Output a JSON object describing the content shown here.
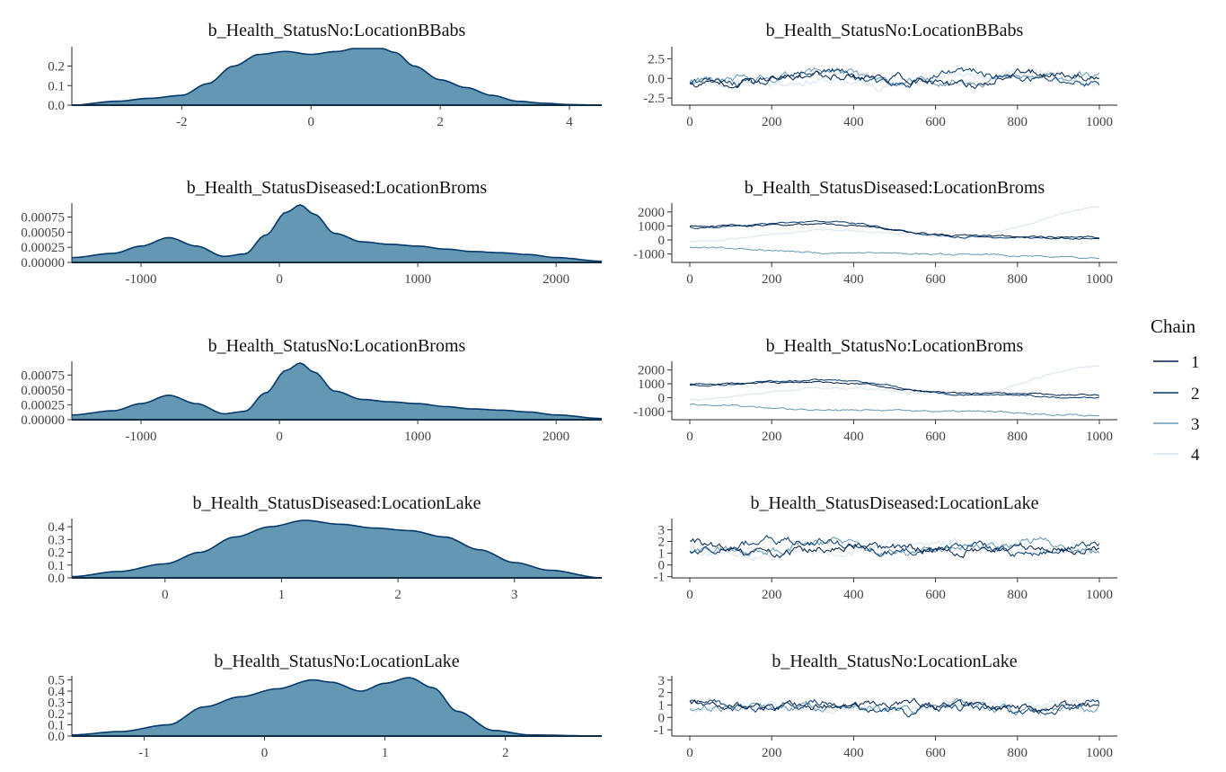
{
  "chart_data": [
    {
      "type": "area",
      "panel": "density",
      "title": "b_Health_StatusNo:LocationBBabs",
      "xlim": [
        -3.7,
        4.5
      ],
      "ylim": [
        0,
        0.29
      ],
      "x_ticks": [
        -2,
        0,
        2,
        4
      ],
      "y_ticks": [
        0.0,
        0.1,
        0.2
      ],
      "y_tick_labels": [
        "0.0",
        "0.1",
        "0.2"
      ],
      "density": {
        "x": [
          -3.7,
          -3.0,
          -2.5,
          -2.0,
          -1.6,
          -1.2,
          -0.8,
          -0.4,
          0.0,
          0.4,
          0.8,
          1.0,
          1.3,
          1.6,
          2.0,
          2.4,
          2.8,
          3.2,
          3.6,
          4.0,
          4.5
        ],
        "y": [
          0.0,
          0.02,
          0.035,
          0.05,
          0.11,
          0.2,
          0.26,
          0.275,
          0.26,
          0.275,
          0.3,
          0.305,
          0.27,
          0.2,
          0.13,
          0.09,
          0.05,
          0.02,
          0.01,
          0.003,
          0.0
        ]
      }
    },
    {
      "type": "line",
      "panel": "trace",
      "title": "b_Health_StatusNo:LocationBBabs",
      "xlim": [
        0,
        1000
      ],
      "ylim": [
        -3.4,
        3.8
      ],
      "x_ticks": [
        0,
        200,
        400,
        600,
        800,
        1000
      ],
      "y_ticks": [
        -2.5,
        0.0,
        2.5
      ],
      "y_tick_labels": [
        "-2.5",
        "0.0",
        "2.5"
      ],
      "trace_spec": {
        "center": 0.0,
        "wander": 1.1,
        "noise": 0.7,
        "seed": 11
      }
    },
    {
      "type": "area",
      "panel": "density",
      "title": "b_Health_StatusDiseased:LocationBroms",
      "xlim": [
        -1500,
        2330
      ],
      "ylim": [
        0,
        0.00095
      ],
      "x_ticks": [
        -1000,
        0,
        1000,
        2000
      ],
      "y_ticks": [
        0.0,
        0.00025,
        0.0005,
        0.00075
      ],
      "y_tick_labels": [
        "0.00000",
        "0.00025",
        "0.00050",
        "0.00075"
      ],
      "density": {
        "x": [
          -1500,
          -1200,
          -1000,
          -800,
          -600,
          -400,
          -250,
          -100,
          50,
          150,
          250,
          400,
          600,
          800,
          1000,
          1200,
          1400,
          1600,
          1800,
          2000,
          2330
        ],
        "y": [
          8e-05,
          0.00015,
          0.00027,
          0.00041,
          0.00027,
          0.0001,
          0.00014,
          0.00045,
          0.00083,
          0.00095,
          0.0008,
          0.00048,
          0.00034,
          0.0003,
          0.00027,
          0.00022,
          0.00018,
          0.00016,
          0.00013,
          8e-05,
          2e-05
        ]
      }
    },
    {
      "type": "line",
      "panel": "trace",
      "title": "b_Health_StatusDiseased:LocationBroms",
      "xlim": [
        0,
        1000
      ],
      "ylim": [
        -1600,
        2500
      ],
      "x_ticks": [
        0,
        200,
        400,
        600,
        800,
        1000
      ],
      "y_ticks": [
        -1000,
        0,
        1000,
        2000
      ],
      "y_tick_labels": [
        "-1000",
        "0",
        "1000",
        "2000"
      ],
      "trace_spec": {
        "paths": [
          [
            -100,
            700,
            200,
            2300
          ],
          [
            -500,
            -900,
            -1000,
            -1300
          ],
          [
            900,
            1300,
            200,
            100
          ],
          [
            1000,
            1100,
            300,
            200
          ]
        ],
        "noise": 90,
        "seed": 23
      }
    },
    {
      "type": "area",
      "panel": "density",
      "title": "b_Health_StatusNo:LocationBroms",
      "xlim": [
        -1500,
        2330
      ],
      "ylim": [
        0,
        0.00095
      ],
      "x_ticks": [
        -1000,
        0,
        1000,
        2000
      ],
      "y_ticks": [
        0.0,
        0.00025,
        0.0005,
        0.00075
      ],
      "y_tick_labels": [
        "0.00000",
        "0.00025",
        "0.00050",
        "0.00075"
      ],
      "density": {
        "x": [
          -1500,
          -1200,
          -1000,
          -800,
          -600,
          -400,
          -250,
          -100,
          50,
          150,
          250,
          400,
          600,
          800,
          1000,
          1200,
          1400,
          1600,
          1800,
          2000,
          2330
        ],
        "y": [
          8e-05,
          0.00015,
          0.00027,
          0.00041,
          0.00027,
          0.0001,
          0.00014,
          0.00045,
          0.00083,
          0.00095,
          0.0008,
          0.00048,
          0.00034,
          0.0003,
          0.00027,
          0.00022,
          0.00018,
          0.00016,
          0.00013,
          8e-05,
          2e-05
        ]
      }
    },
    {
      "type": "line",
      "panel": "trace",
      "title": "b_Health_StatusNo:LocationBroms",
      "xlim": [
        0,
        1000
      ],
      "ylim": [
        -1600,
        2500
      ],
      "x_ticks": [
        0,
        200,
        400,
        600,
        800,
        1000
      ],
      "y_ticks": [
        -1000,
        0,
        1000,
        2000
      ],
      "y_tick_labels": [
        "-1000",
        "0",
        "1000",
        "2000"
      ],
      "trace_spec": {
        "paths": [
          [
            -100,
            700,
            200,
            2300
          ],
          [
            -500,
            -900,
            -1000,
            -1300
          ],
          [
            900,
            1300,
            200,
            0
          ],
          [
            1000,
            1100,
            300,
            200
          ]
        ],
        "noise": 90,
        "seed": 37
      }
    },
    {
      "type": "area",
      "panel": "density",
      "title": "b_Health_StatusDiseased:LocationLake",
      "xlim": [
        -0.8,
        3.75
      ],
      "ylim": [
        0,
        0.45
      ],
      "x_ticks": [
        0,
        1,
        2,
        3
      ],
      "y_ticks": [
        0.0,
        0.1,
        0.2,
        0.3,
        0.4
      ],
      "y_tick_labels": [
        "0.0",
        "0.1",
        "0.2",
        "0.3",
        "0.4"
      ],
      "density": {
        "x": [
          -0.8,
          -0.4,
          0.0,
          0.3,
          0.6,
          0.9,
          1.2,
          1.5,
          1.8,
          2.1,
          2.4,
          2.7,
          3.0,
          3.3,
          3.75
        ],
        "y": [
          0.01,
          0.05,
          0.11,
          0.2,
          0.32,
          0.4,
          0.45,
          0.42,
          0.39,
          0.37,
          0.32,
          0.22,
          0.12,
          0.06,
          0.0
        ]
      }
    },
    {
      "type": "line",
      "panel": "trace",
      "title": "b_Health_StatusDiseased:LocationLake",
      "xlim": [
        0,
        1000
      ],
      "ylim": [
        -1.1,
        3.8
      ],
      "x_ticks": [
        0,
        200,
        400,
        600,
        800,
        1000
      ],
      "y_ticks": [
        -1,
        0,
        1,
        2,
        3
      ],
      "y_tick_labels": [
        "-1",
        "0",
        "1",
        "2",
        "3"
      ],
      "trace_spec": {
        "center": 1.5,
        "wander": 0.6,
        "noise": 0.5,
        "seed": 53
      }
    },
    {
      "type": "area",
      "panel": "density",
      "title": "b_Health_StatusNo:LocationLake",
      "xlim": [
        -1.6,
        2.8
      ],
      "ylim": [
        0,
        0.52
      ],
      "x_ticks": [
        -1,
        0,
        1,
        2
      ],
      "y_ticks": [
        0.0,
        0.1,
        0.2,
        0.3,
        0.4,
        0.5
      ],
      "y_tick_labels": [
        "0.0",
        "0.1",
        "0.2",
        "0.3",
        "0.4",
        "0.5"
      ],
      "density": {
        "x": [
          -1.6,
          -1.2,
          -0.8,
          -0.5,
          -0.2,
          0.1,
          0.4,
          0.55,
          0.8,
          1.0,
          1.2,
          1.4,
          1.6,
          1.9,
          2.2,
          2.8
        ],
        "y": [
          0.01,
          0.04,
          0.1,
          0.26,
          0.35,
          0.42,
          0.5,
          0.48,
          0.4,
          0.47,
          0.52,
          0.43,
          0.22,
          0.05,
          0.01,
          0.0
        ]
      }
    },
    {
      "type": "line",
      "panel": "trace",
      "title": "b_Health_StatusNo:LocationLake",
      "xlim": [
        0,
        1000
      ],
      "ylim": [
        -1.5,
        3.2
      ],
      "x_ticks": [
        0,
        200,
        400,
        600,
        800,
        1000
      ],
      "y_ticks": [
        -1,
        0,
        1,
        2,
        3
      ],
      "y_tick_labels": [
        "-1",
        "0",
        "1",
        "2",
        "3"
      ],
      "trace_spec": {
        "center": 0.8,
        "wander": 0.5,
        "noise": 0.45,
        "seed": 71
      }
    }
  ],
  "legend": {
    "title": "Chain",
    "entries": [
      "1",
      "2",
      "3",
      "4"
    ],
    "colors": [
      "#011f4b",
      "#03396c",
      "#6497b1",
      "#d6e4ee"
    ],
    "placement": "right"
  },
  "colors": {
    "density_fill": "#6497b1",
    "density_line": "#03396c"
  }
}
